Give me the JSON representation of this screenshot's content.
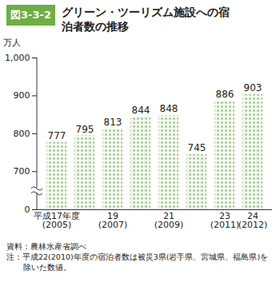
{
  "chart_data": {
    "type": "bar",
    "figure_number": "図3-3-2",
    "title": "グリーン・ツーリズム施設への宿泊者数の推移",
    "y_label": "万人",
    "categories": [
      "平成17年度\n(2005)",
      null,
      "19\n(2007)",
      null,
      "21\n(2009)",
      null,
      "23\n(2011)",
      "24\n(2012)"
    ],
    "values": [
      777,
      795,
      813,
      844,
      848,
      745,
      886,
      903
    ],
    "color": "#8cc47a",
    "ylim": [
      0,
      1000
    ],
    "yticks": [
      0,
      700,
      800,
      900,
      {
        "value": 1000,
        "label": "1,000"
      }
    ],
    "grid": false,
    "data_labels": true,
    "notes": [
      "資料：農林水産省調べ",
      "注：平成22(2010)年度の宿泊者数は被災3県(岩手県、宮城県、福島県)を除いた数値。"
    ]
  }
}
